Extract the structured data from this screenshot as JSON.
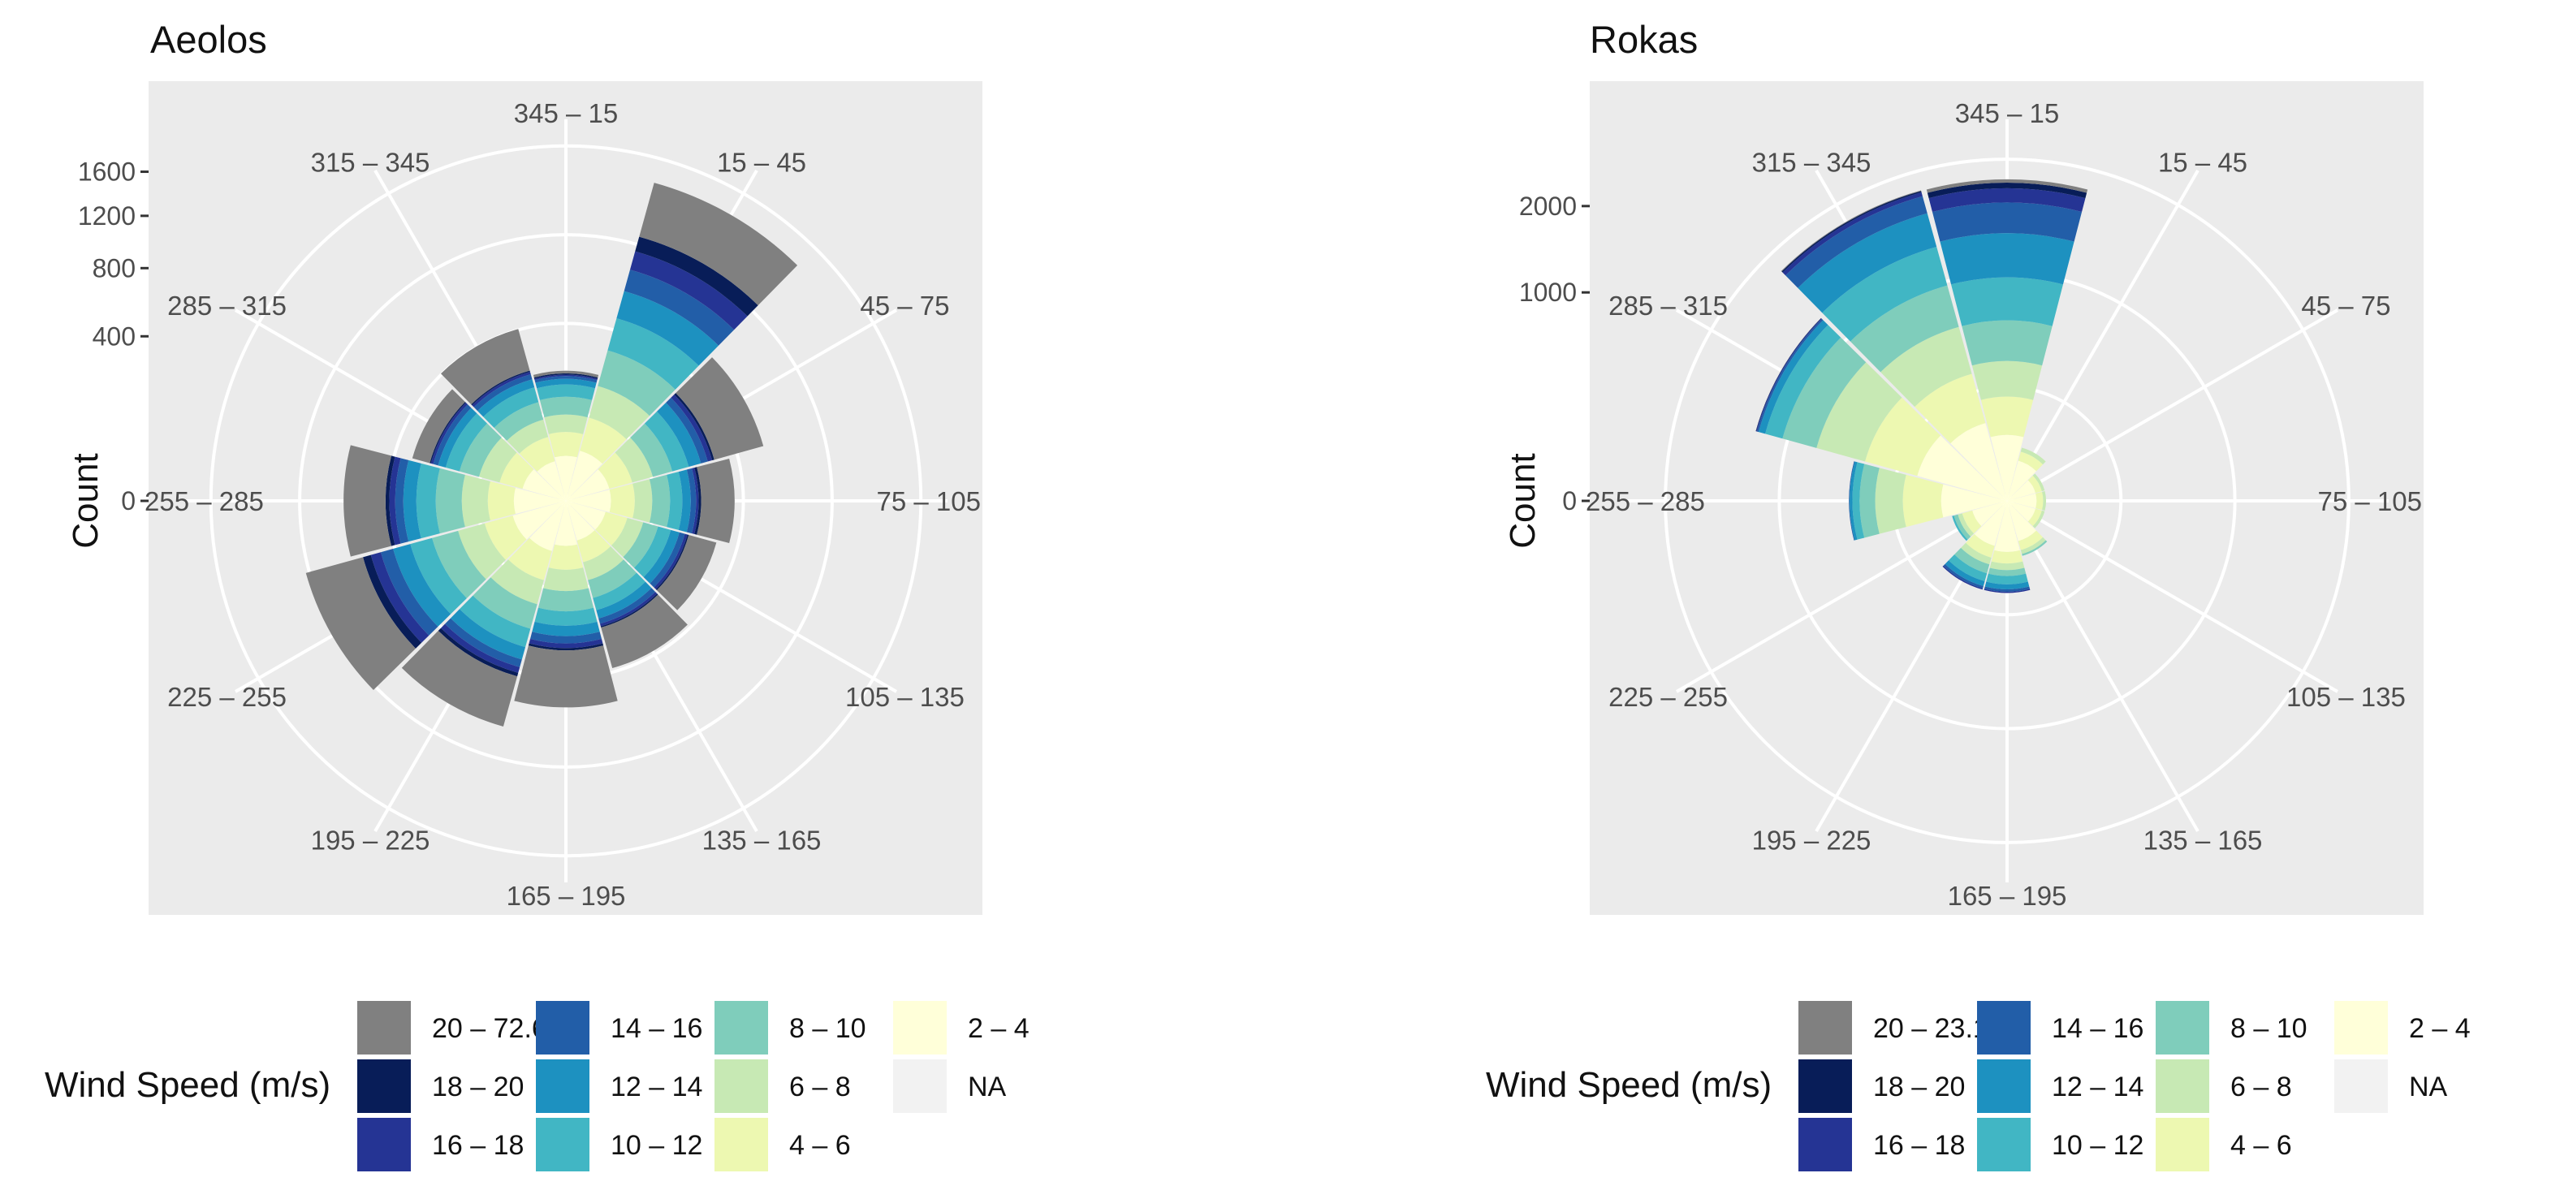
{
  "chart_data": [
    {
      "type": "windrose",
      "title": "Aeolos",
      "ylabel": "Count",
      "y_ticks": [
        "0",
        "400",
        "800",
        "1200",
        "1600"
      ],
      "y_tick_values": [
        0,
        400,
        800,
        1200,
        1600
      ],
      "rmax": 2150,
      "directions": [
        "345 – 15",
        "15 – 45",
        "45 – 75",
        "75 – 105",
        "105 – 135",
        "135 – 165",
        "165 – 195",
        "195 – 225",
        "225 – 255",
        "255 – 285",
        "285 – 315",
        "315 – 345"
      ],
      "speed_bins": [
        "2 – 4",
        "4 – 6",
        "6 – 8",
        "8 – 10",
        "10 – 12",
        "12 – 14",
        "14 – 16",
        "16 – 18",
        "18 – 20",
        "20 – 72.6"
      ],
      "series": [
        {
          "name": "2 – 4",
          "values": [
            30,
            40,
            30,
            30,
            25,
            25,
            30,
            40,
            45,
            40,
            30,
            25
          ]
        },
        {
          "name": "4 – 6",
          "values": [
            40,
            70,
            40,
            40,
            35,
            35,
            40,
            60,
            60,
            50,
            40,
            40
          ]
        },
        {
          "name": "6 – 8",
          "values": [
            40,
            100,
            50,
            40,
            35,
            40,
            50,
            70,
            80,
            70,
            50,
            40
          ]
        },
        {
          "name": "8 – 10",
          "values": [
            50,
            150,
            60,
            50,
            40,
            50,
            60,
            90,
            100,
            90,
            60,
            50
          ]
        },
        {
          "name": "10 – 12",
          "values": [
            40,
            170,
            60,
            40,
            40,
            40,
            50,
            80,
            100,
            80,
            50,
            50
          ]
        },
        {
          "name": "12 – 14",
          "values": [
            20,
            170,
            50,
            30,
            30,
            30,
            40,
            60,
            90,
            60,
            30,
            30
          ]
        },
        {
          "name": "14 – 16",
          "values": [
            10,
            150,
            30,
            20,
            20,
            20,
            30,
            40,
            70,
            40,
            20,
            20
          ]
        },
        {
          "name": "16 – 18",
          "values": [
            5,
            140,
            20,
            10,
            10,
            10,
            20,
            30,
            60,
            30,
            10,
            10
          ]
        },
        {
          "name": "18 – 20",
          "values": [
            5,
            120,
            10,
            10,
            5,
            5,
            10,
            20,
            50,
            20,
            5,
            5
          ]
        },
        {
          "name": "20 – 72.6",
          "values": [
            10,
            500,
            270,
            150,
            120,
            190,
            300,
            320,
            420,
            250,
            80,
            200
          ]
        },
        {
          "name": "NA",
          "values": [
            0,
            0,
            0,
            0,
            0,
            0,
            0,
            0,
            0,
            0,
            0,
            0
          ]
        }
      ]
    },
    {
      "type": "windrose",
      "title": "Rokas",
      "ylabel": "Count",
      "y_ticks": [
        "0",
        "1000",
        "2000"
      ],
      "y_tick_values": [
        0,
        1000,
        2000
      ],
      "rmax": 3350,
      "directions": [
        "345 – 15",
        "15 – 45",
        "45 – 75",
        "75 – 105",
        "105 – 135",
        "135 – 165",
        "165 – 195",
        "195 – 225",
        "225 – 255",
        "255 – 285",
        "285 – 315",
        "315 – 345"
      ],
      "speed_bins": [
        "2 – 4",
        "4 – 6",
        "6 – 8",
        "8 – 10",
        "10 – 12",
        "12 – 14",
        "14 – 16",
        "16 – 18",
        "18 – 20",
        "20 – 23.1"
      ],
      "series": [
        {
          "name": "2 – 4",
          "values": [
            100,
            40,
            20,
            20,
            20,
            40,
            60,
            50,
            30,
            100,
            200,
            150
          ]
        },
        {
          "name": "4 – 6",
          "values": [
            150,
            20,
            10,
            10,
            10,
            20,
            30,
            30,
            20,
            150,
            300,
            250
          ]
        },
        {
          "name": "6 – 8",
          "values": [
            200,
            10,
            5,
            5,
            5,
            10,
            20,
            20,
            10,
            150,
            400,
            350
          ]
        },
        {
          "name": "8 – 10",
          "values": [
            300,
            0,
            0,
            0,
            0,
            5,
            20,
            30,
            10,
            100,
            350,
            400
          ]
        },
        {
          "name": "10 – 12",
          "values": [
            400,
            0,
            0,
            0,
            0,
            0,
            30,
            30,
            5,
            50,
            200,
            450
          ]
        },
        {
          "name": "12 – 14",
          "values": [
            500,
            0,
            0,
            0,
            0,
            0,
            20,
            20,
            0,
            20,
            80,
            450
          ]
        },
        {
          "name": "14 – 16",
          "values": [
            400,
            0,
            0,
            0,
            0,
            0,
            10,
            10,
            0,
            5,
            20,
            250
          ]
        },
        {
          "name": "16 – 18",
          "values": [
            200,
            0,
            0,
            0,
            0,
            0,
            5,
            5,
            0,
            0,
            10,
            60
          ]
        },
        {
          "name": "18 – 20",
          "values": [
            80,
            0,
            0,
            0,
            0,
            0,
            0,
            0,
            0,
            0,
            5,
            20
          ]
        },
        {
          "name": "20 – 23.1",
          "values": [
            50,
            0,
            0,
            0,
            0,
            0,
            0,
            0,
            0,
            0,
            0,
            10
          ]
        },
        {
          "name": "NA",
          "values": [
            0,
            0,
            0,
            0,
            0,
            0,
            0,
            0,
            0,
            0,
            0,
            0
          ]
        }
      ]
    }
  ],
  "colors": {
    "panel_bg": "#ebebeb",
    "grid": "#ffffff",
    "bins": {
      "2 – 4": "#ffffd9",
      "4 – 6": "#edf8b1",
      "6 – 8": "#c7e9b4",
      "8 – 10": "#7fcdbb",
      "10 – 12": "#41b6c4",
      "12 – 14": "#1d91c0",
      "14 – 16": "#225ea8",
      "16 – 18": "#253494",
      "18 – 20": "#081d58",
      "top": "#808080",
      "NA": "#f2f2f2"
    }
  },
  "legend": {
    "title": "Wind Speed (m/s)",
    "left_items": [
      "20 – 72.6",
      "18 – 20",
      "16 – 18",
      "14 – 16",
      "12 – 14",
      "10 – 12",
      "8 – 10",
      "6 – 8",
      "4 – 6",
      "2 – 4",
      "NA"
    ],
    "right_items": [
      "20 – 23.1",
      "18 – 20",
      "16 – 18",
      "14 – 16",
      "12 – 14",
      "10 – 12",
      "8 – 10",
      "6 – 8",
      "4 – 6",
      "2 – 4",
      "NA"
    ]
  }
}
